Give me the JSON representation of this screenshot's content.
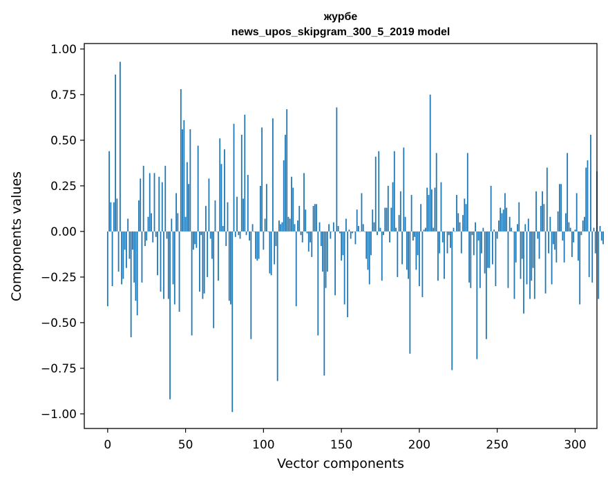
{
  "chart_data": {
    "type": "bar",
    "title": "журбе",
    "subtitle": "news_upos_skipgram_300_5_2019 model",
    "xlabel": "Vector components",
    "ylabel": "Components values",
    "xlim": [
      -15,
      314
    ],
    "ylim": [
      -1.08,
      1.03
    ],
    "xticks": [
      0,
      50,
      100,
      150,
      200,
      250,
      300
    ],
    "xtick_labels": [
      "0",
      "50",
      "100",
      "150",
      "200",
      "250",
      "300"
    ],
    "yticks": [
      1.0,
      0.75,
      0.5,
      0.25,
      0.0,
      -0.25,
      -0.5,
      -0.75,
      -1.0
    ],
    "ytick_labels": [
      "1.00",
      "0.75",
      "0.50",
      "0.25",
      "0.00",
      "−0.25",
      "−0.50",
      "−0.75",
      "−1.00"
    ],
    "bar_color": "#1f77b4",
    "grid": false,
    "values": [
      -0.41,
      0.44,
      0.16,
      -0.3,
      0.16,
      0.86,
      0.18,
      -0.22,
      0.93,
      -0.29,
      -0.26,
      -0.1,
      -0.2,
      0.07,
      -0.15,
      -0.58,
      -0.1,
      -0.28,
      -0.38,
      -0.46,
      0.17,
      0.29,
      -0.28,
      0.36,
      -0.08,
      -0.05,
      0.08,
      0.32,
      0.1,
      -0.06,
      0.32,
      -0.03,
      -0.24,
      0.3,
      -0.33,
      0.27,
      -0.37,
      0.36,
      -0.04,
      -0.37,
      -0.92,
      0.07,
      -0.29,
      -0.4,
      0.21,
      0.1,
      -0.44,
      0.78,
      0.56,
      0.61,
      0.08,
      0.38,
      0.26,
      0.56,
      -0.57,
      -0.1,
      -0.07,
      -0.09,
      0.47,
      -0.33,
      -0.02,
      -0.37,
      -0.34,
      0.14,
      -0.25,
      0.29,
      -0.04,
      -0.15,
      -0.53,
      0.17,
      0.0,
      -0.27,
      0.51,
      0.37,
      0.03,
      0.45,
      -0.08,
      0.16,
      -0.38,
      -0.4,
      -0.99,
      0.59,
      -0.03,
      0.19,
      -0.02,
      -0.04,
      0.53,
      0.18,
      0.64,
      -0.02,
      0.31,
      -0.05,
      -0.59,
      0.04,
      0.0,
      -0.15,
      -0.16,
      -0.15,
      0.25,
      0.57,
      -0.1,
      0.07,
      0.26,
      0.0,
      -0.23,
      -0.24,
      0.62,
      -0.18,
      -0.08,
      -0.82,
      0.06,
      0.04,
      0.05,
      0.39,
      0.53,
      0.67,
      0.08,
      0.07,
      0.3,
      0.24,
      0.04,
      -0.41,
      0.06,
      0.14,
      -0.02,
      -0.06,
      0.32,
      0.12,
      -0.01,
      -0.11,
      -0.06,
      -0.14,
      0.14,
      0.15,
      0.15,
      -0.57,
      0.05,
      -0.08,
      -0.22,
      -0.79,
      -0.31,
      -0.22,
      0.04,
      -0.04,
      0.0,
      0.05,
      -0.35,
      0.68,
      0.03,
      -0.01,
      -0.16,
      -0.13,
      -0.4,
      0.07,
      -0.47,
      0.01,
      -0.04,
      -0.01,
      0.0,
      -0.07,
      0.12,
      0.03,
      0.0,
      0.21,
      0.04,
      0.0,
      -0.15,
      -0.21,
      -0.29,
      -0.13,
      0.12,
      0.05,
      0.41,
      -0.02,
      0.44,
      0.02,
      -0.27,
      -0.02,
      0.13,
      0.13,
      0.25,
      -0.06,
      0.13,
      0.27,
      0.44,
      0.02,
      -0.25,
      0.09,
      0.22,
      -0.18,
      0.46,
      0.08,
      -0.21,
      -0.26,
      -0.67,
      0.2,
      -0.05,
      -0.03,
      -0.21,
      -0.13,
      -0.3,
      0.15,
      -0.36,
      0.01,
      0.02,
      0.24,
      0.2,
      0.75,
      0.23,
      0.02,
      0.24,
      0.43,
      -0.27,
      -0.12,
      0.27,
      -0.06,
      -0.26,
      0.0,
      -0.12,
      -0.02,
      -0.09,
      -0.76,
      0.02,
      0.0,
      0.2,
      0.1,
      0.05,
      -0.12,
      0.09,
      0.18,
      0.15,
      0.43,
      -0.28,
      -0.31,
      -0.02,
      -0.13,
      0.05,
      -0.7,
      -0.05,
      -0.31,
      -0.12,
      0.02,
      -0.23,
      -0.59,
      -0.2,
      -0.2,
      0.25,
      -0.18,
      0.01,
      -0.3,
      -0.04,
      0.06,
      0.13,
      0.1,
      0.12,
      0.21,
      0.13,
      -0.31,
      0.08,
      0.02,
      0.0,
      -0.37,
      -0.17,
      0.04,
      0.16,
      -0.26,
      -0.15,
      -0.45,
      0.04,
      -0.29,
      0.07,
      -0.37,
      -0.27,
      -0.2,
      -0.37,
      0.22,
      -0.04,
      -0.15,
      0.14,
      0.22,
      0.15,
      -0.34,
      0.35,
      -0.12,
      0.08,
      -0.29,
      -0.07,
      -0.1,
      -0.17,
      0.11,
      0.26,
      0.26,
      -0.05,
      -0.17,
      0.1,
      0.43,
      0.05,
      0.02,
      -0.14,
      -0.06,
      0.01,
      0.21,
      -0.16,
      -0.4,
      -0.02,
      0.06,
      0.08,
      0.35,
      0.39,
      -0.25,
      0.53,
      -0.28,
      0.02,
      -0.12,
      0.33,
      -0.37,
      0.03,
      -0.05,
      -0.07
    ]
  }
}
